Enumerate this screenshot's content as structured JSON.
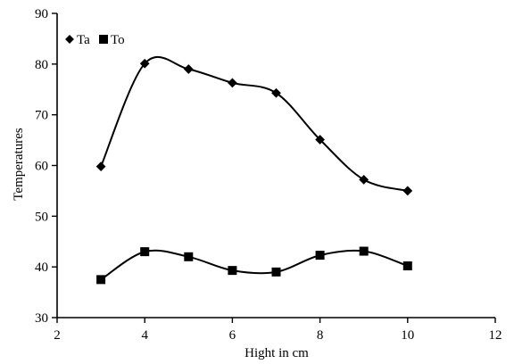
{
  "chart_data": {
    "type": "scatter",
    "xlabel": "Hight in cm",
    "ylabel": "Temperatures",
    "xlim": [
      2,
      12
    ],
    "ylim": [
      30,
      90
    ],
    "xticks": [
      2,
      4,
      6,
      8,
      10,
      12
    ],
    "yticks": [
      30,
      40,
      50,
      60,
      70,
      80,
      90
    ],
    "grid": false,
    "legend_position": "top-left",
    "line_style": "smoothed",
    "series": [
      {
        "name": "Ta",
        "marker": "diamond",
        "color": "#000000",
        "x": [
          3,
          4,
          5,
          6,
          7,
          8,
          9,
          10
        ],
        "y": [
          59.8,
          80.1,
          79.0,
          76.3,
          74.3,
          65.1,
          57.2,
          55.0
        ]
      },
      {
        "name": "To",
        "marker": "square",
        "color": "#000000",
        "x": [
          3,
          4,
          5,
          6,
          7,
          8,
          9,
          10
        ],
        "y": [
          37.5,
          43.0,
          42.0,
          39.3,
          39.0,
          42.3,
          43.1,
          40.2
        ]
      }
    ]
  }
}
